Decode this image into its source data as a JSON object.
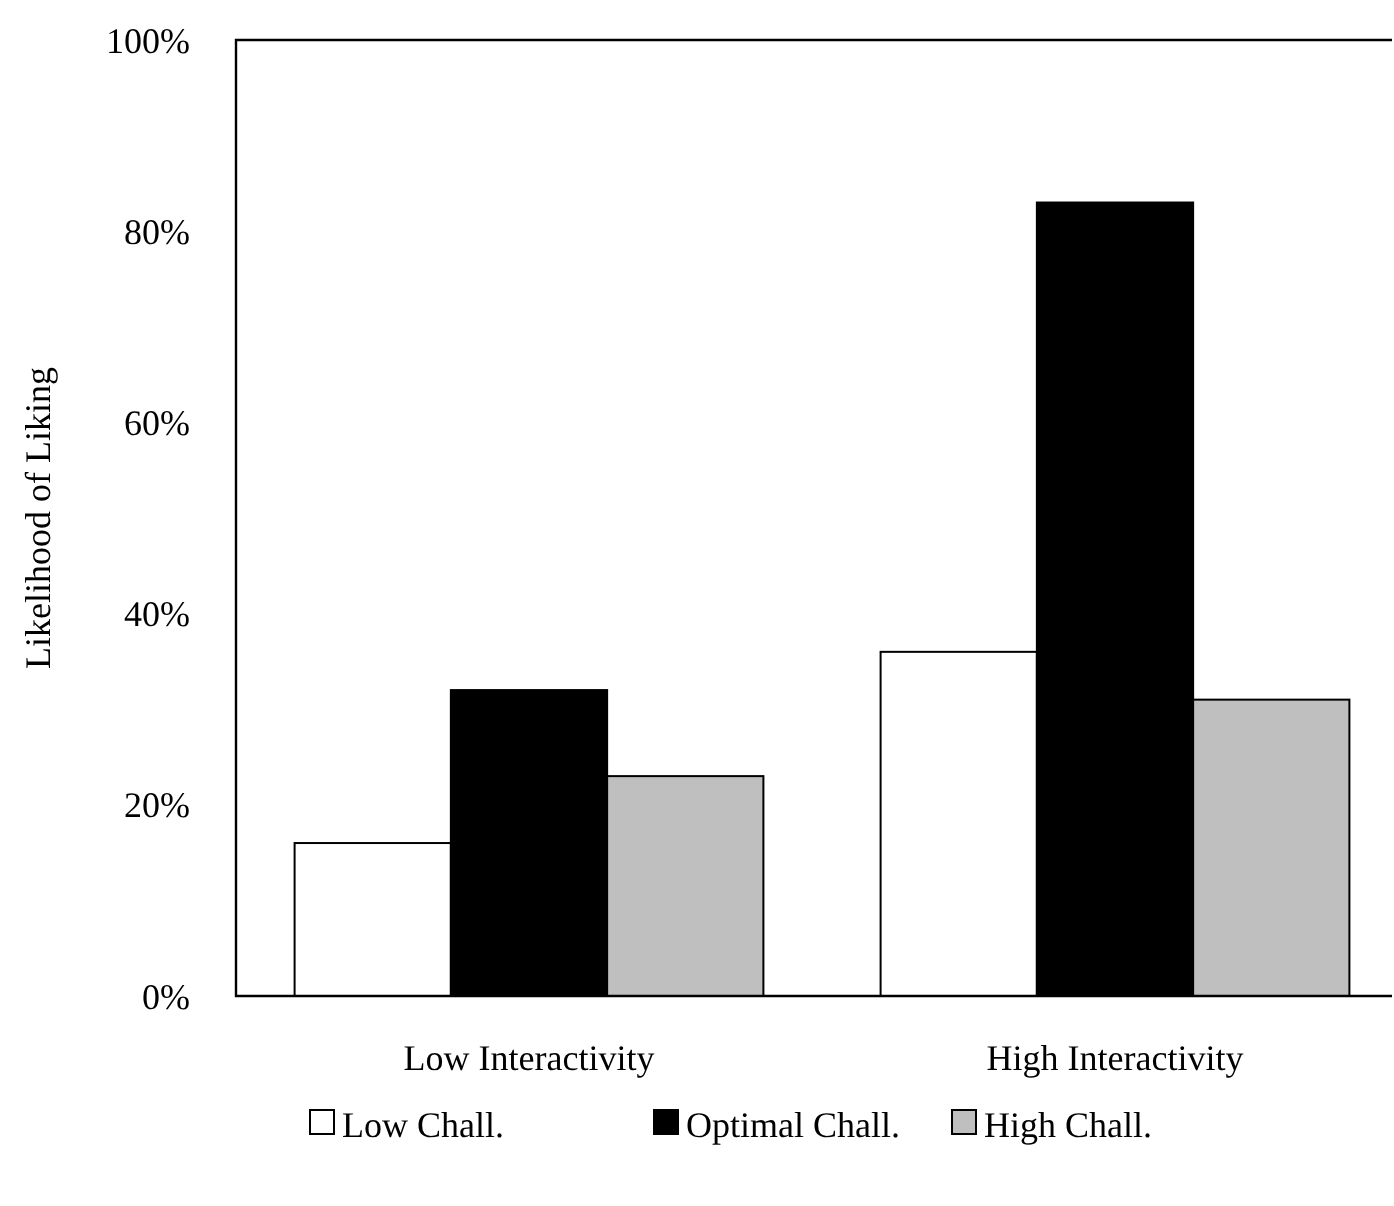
{
  "chart_data": {
    "type": "bar",
    "ylabel": "Likelihood of Liking",
    "categories": [
      "Low Interactivity",
      "High Interactivity"
    ],
    "series": [
      {
        "name": "Low Chall.",
        "color": "#ffffff",
        "values": [
          16,
          36
        ]
      },
      {
        "name": "Optimal Chall.",
        "color": "#000000",
        "values": [
          32,
          83
        ]
      },
      {
        "name": "High Chall.",
        "color": "#bfbfbf",
        "values": [
          23,
          31
        ]
      }
    ],
    "ylim": [
      0,
      100
    ],
    "yticks": [
      {
        "value": 0,
        "label": "0%"
      },
      {
        "value": 20,
        "label": "20%"
      },
      {
        "value": 40,
        "label": "40%"
      },
      {
        "value": 60,
        "label": "60%"
      },
      {
        "value": 80,
        "label": "80%"
      },
      {
        "value": 100,
        "label": "100%"
      }
    ],
    "grid": false,
    "legend": "bottom"
  }
}
